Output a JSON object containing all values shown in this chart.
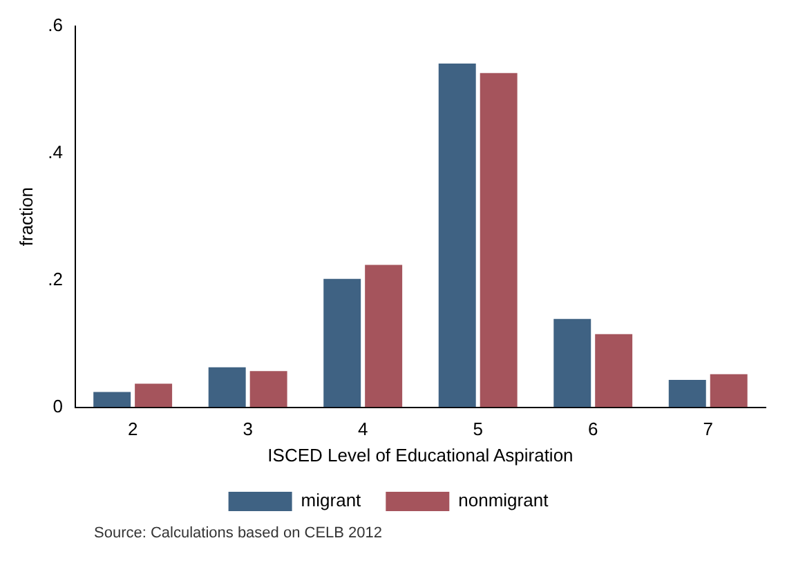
{
  "chart_data": {
    "type": "bar",
    "xlabel": "ISCED Level of Educational Aspiration",
    "ylabel": "fraction",
    "categories": [
      "2",
      "3",
      "4",
      "5",
      "6",
      "7"
    ],
    "series": [
      {
        "name": "migrant",
        "color": "#3f6283",
        "values": [
          0.024,
          0.063,
          0.202,
          0.541,
          0.139,
          0.043
        ]
      },
      {
        "name": "nonmigrant",
        "color": "#a5545c",
        "values": [
          0.037,
          0.057,
          0.224,
          0.526,
          0.115,
          0.052
        ]
      }
    ],
    "ylim": [
      0,
      0.6
    ],
    "yticks": [
      {
        "value": 0,
        "label": "0"
      },
      {
        "value": 0.2,
        "label": ".2"
      },
      {
        "value": 0.4,
        "label": ".4"
      },
      {
        "value": 0.6,
        "label": ".6"
      }
    ],
    "grid": false,
    "legend": "bottom",
    "annotations": [
      "Source: Calculations based on CELB 2012"
    ]
  }
}
